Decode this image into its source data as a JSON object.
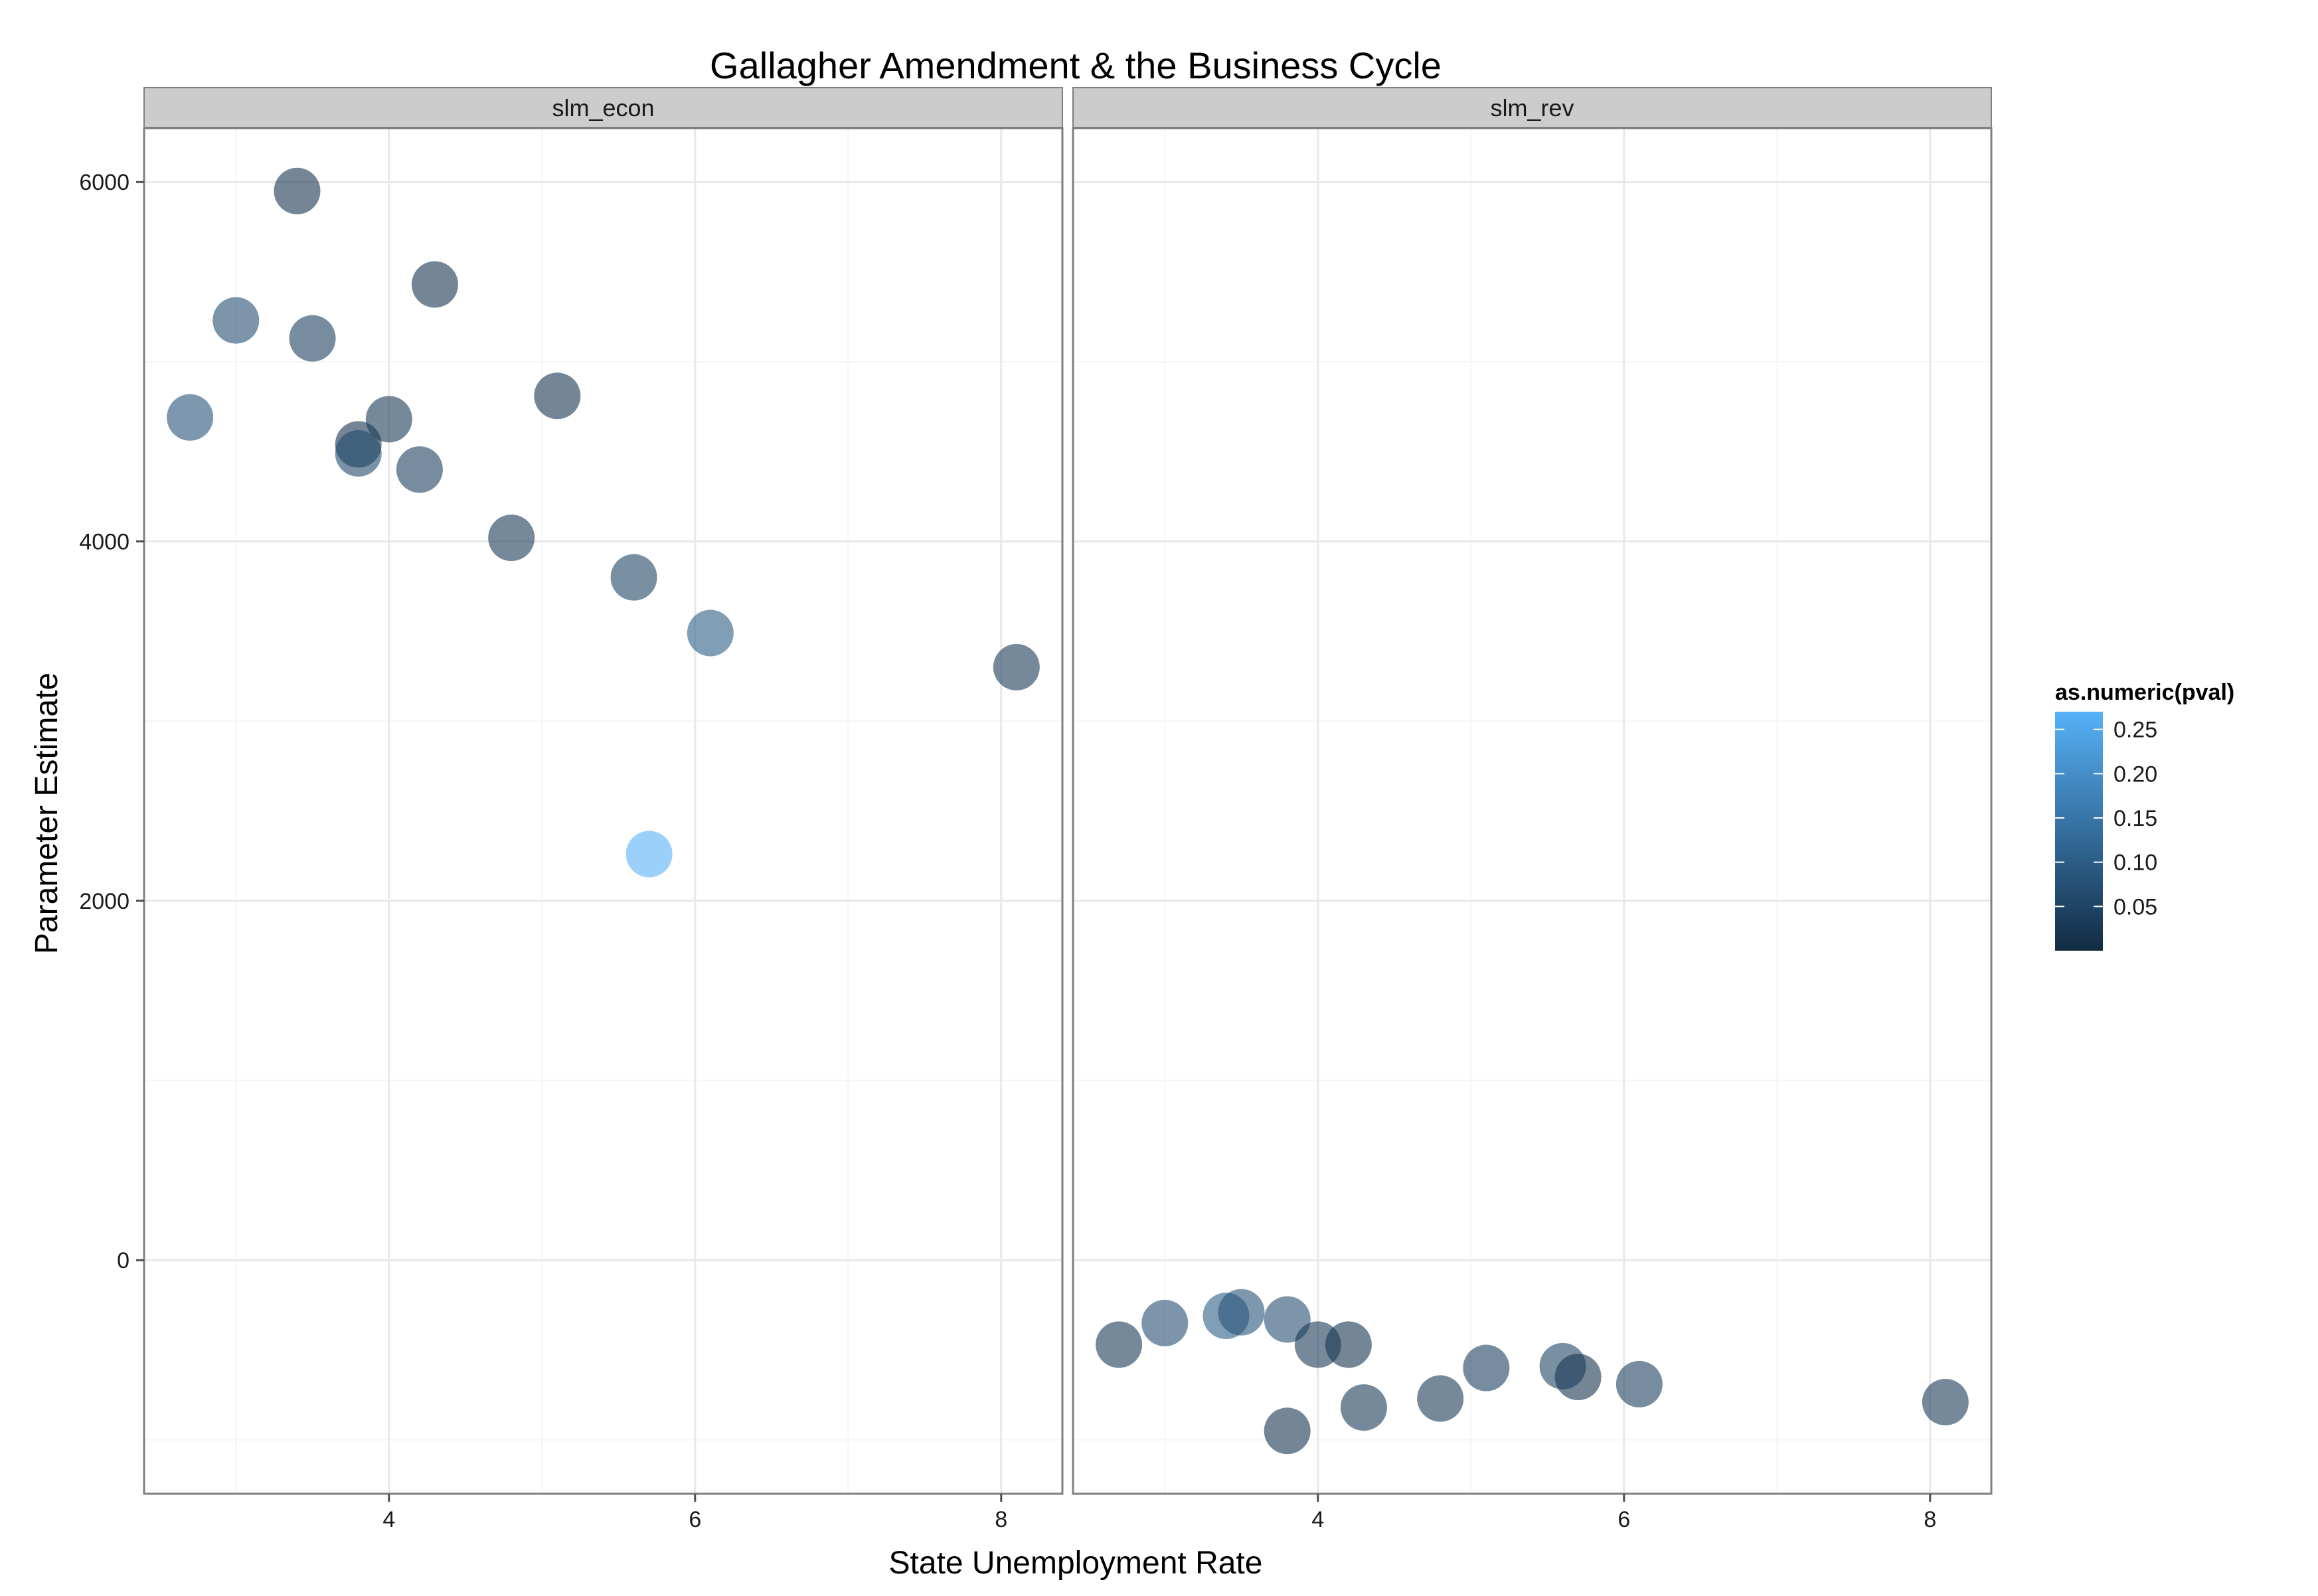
{
  "chart_data": {
    "type": "scatter",
    "title": "Gallagher Amendment & the Business Cycle",
    "xlabel": "State Unemployment Rate",
    "ylabel": "Parameter Estimate",
    "xlim": [
      2.4,
      8.4
    ],
    "ylim": [
      -1300,
      6300
    ],
    "x_ticks": [
      4,
      6,
      8
    ],
    "x_tick_labels": [
      "4",
      "6",
      "8"
    ],
    "y_ticks": [
      0,
      2000,
      4000,
      6000
    ],
    "y_tick_labels": [
      "0",
      "2000",
      "4000",
      "6000"
    ],
    "grid": true,
    "color_scale": {
      "title": "as.numeric(pval)",
      "min": 0.0,
      "max": 0.27,
      "low_color": "#132b43",
      "high_color": "#56b1f7",
      "ticks": [
        0.05,
        0.1,
        0.15,
        0.2,
        0.25
      ],
      "tick_labels": [
        "0.05",
        "0.10",
        "0.15",
        "0.20",
        "0.25"
      ],
      "legend_position": "right"
    },
    "panels": [
      {
        "strip": "slm_econ",
        "points": [
          {
            "x": 2.7,
            "y": 4690,
            "pval": 0.08
          },
          {
            "x": 3.0,
            "y": 5230,
            "pval": 0.07
          },
          {
            "x": 3.4,
            "y": 5950,
            "pval": 0.02
          },
          {
            "x": 3.5,
            "y": 5130,
            "pval": 0.04
          },
          {
            "x": 3.8,
            "y": 4540,
            "pval": 0.02
          },
          {
            "x": 3.8,
            "y": 4490,
            "pval": 0.06
          },
          {
            "x": 4.0,
            "y": 4680,
            "pval": 0.03
          },
          {
            "x": 4.2,
            "y": 4400,
            "pval": 0.04
          },
          {
            "x": 4.3,
            "y": 5430,
            "pval": 0.02
          },
          {
            "x": 4.8,
            "y": 4020,
            "pval": 0.03
          },
          {
            "x": 5.1,
            "y": 4810,
            "pval": 0.02
          },
          {
            "x": 5.6,
            "y": 3800,
            "pval": 0.05
          },
          {
            "x": 5.7,
            "y": 2260,
            "pval": 0.27
          },
          {
            "x": 6.1,
            "y": 3490,
            "pval": 0.1
          },
          {
            "x": 8.1,
            "y": 3300,
            "pval": 0.03
          }
        ]
      },
      {
        "strip": "slm_rev",
        "points": [
          {
            "x": 2.7,
            "y": -470,
            "pval": 0.03
          },
          {
            "x": 3.0,
            "y": -350,
            "pval": 0.07
          },
          {
            "x": 3.4,
            "y": -310,
            "pval": 0.1
          },
          {
            "x": 3.5,
            "y": -290,
            "pval": 0.08
          },
          {
            "x": 3.8,
            "y": -330,
            "pval": 0.07
          },
          {
            "x": 3.8,
            "y": -950,
            "pval": 0.02
          },
          {
            "x": 4.0,
            "y": -470,
            "pval": 0.03
          },
          {
            "x": 4.2,
            "y": -470,
            "pval": 0.02
          },
          {
            "x": 4.3,
            "y": -820,
            "pval": 0.03
          },
          {
            "x": 4.8,
            "y": -770,
            "pval": 0.03
          },
          {
            "x": 5.1,
            "y": -600,
            "pval": 0.04
          },
          {
            "x": 5.6,
            "y": -590,
            "pval": 0.05
          },
          {
            "x": 5.7,
            "y": -650,
            "pval": 0.02
          },
          {
            "x": 6.1,
            "y": -690,
            "pval": 0.04
          },
          {
            "x": 8.1,
            "y": -790,
            "pval": 0.03
          }
        ]
      }
    ]
  }
}
